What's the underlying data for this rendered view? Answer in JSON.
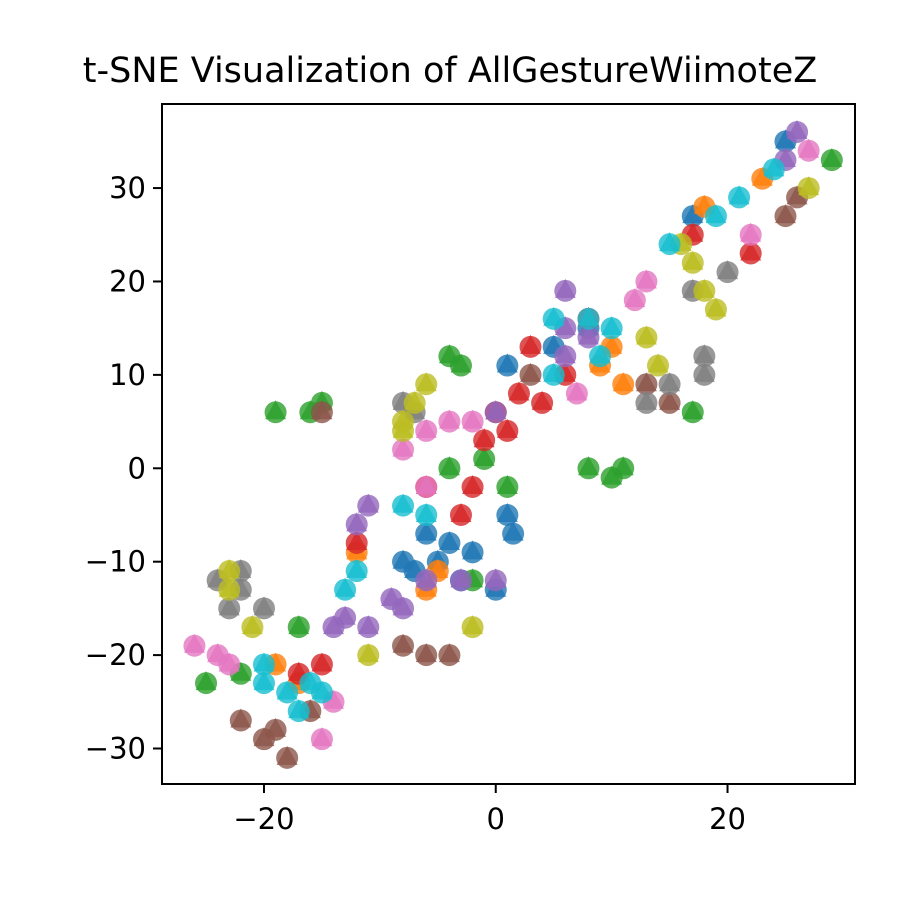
{
  "chart_data": {
    "type": "scatter",
    "title": "t-SNE Visualization of AllGestureWiimoteZ",
    "xlabel": "",
    "ylabel": "",
    "xlim": [
      -28.8,
      31.0
    ],
    "ylim": [
      -33.8,
      39.0
    ],
    "xticks": [
      -20,
      0,
      20
    ],
    "xtick_labels": [
      "−20",
      "0",
      "20"
    ],
    "yticks": [
      -30,
      -20,
      -10,
      0,
      10,
      20,
      30
    ],
    "ytick_labels": [
      "−30",
      "−20",
      "−10",
      "0",
      "10",
      "20",
      "30"
    ],
    "grid": false,
    "legend": false,
    "marker_styles": [
      "circle",
      "triangle"
    ],
    "series": [
      {
        "color": "#1f77b4",
        "points": [
          [
            1,
            -5
          ],
          [
            1.5,
            -7
          ],
          [
            -4,
            -8
          ],
          [
            -5,
            -10
          ],
          [
            -7,
            -11
          ],
          [
            0,
            -13
          ],
          [
            -8,
            -10
          ],
          [
            -3,
            -12
          ],
          [
            -6,
            -7
          ],
          [
            5,
            13
          ],
          [
            1,
            11
          ],
          [
            8,
            15
          ],
          [
            25,
            35
          ],
          [
            17,
            27
          ],
          [
            -2,
            -9
          ]
        ]
      },
      {
        "color": "#ff7f0e",
        "points": [
          [
            -5,
            -11
          ],
          [
            9,
            11
          ],
          [
            10,
            13
          ],
          [
            11,
            9
          ],
          [
            -12,
            -9
          ],
          [
            -19,
            -21
          ],
          [
            23,
            31
          ],
          [
            -17,
            -23
          ],
          [
            18,
            28
          ],
          [
            -6,
            -13
          ]
        ]
      },
      {
        "color": "#2ca02c",
        "points": [
          [
            -4,
            12
          ],
          [
            -3,
            11
          ],
          [
            8,
            0
          ],
          [
            10,
            -1
          ],
          [
            11,
            0
          ],
          [
            -4,
            0
          ],
          [
            -1,
            1
          ],
          [
            1,
            -2
          ],
          [
            -2,
            -12
          ],
          [
            17,
            6
          ],
          [
            29,
            33
          ],
          [
            -17,
            -17
          ],
          [
            -25,
            -23
          ],
          [
            -22,
            -22
          ],
          [
            -19,
            6
          ],
          [
            -15,
            7
          ],
          [
            -16,
            6
          ]
        ]
      },
      {
        "color": "#d62728",
        "points": [
          [
            1,
            4
          ],
          [
            -1,
            3
          ],
          [
            0,
            6
          ],
          [
            2,
            8
          ],
          [
            3,
            13
          ],
          [
            -2,
            -2
          ],
          [
            -3,
            -5
          ],
          [
            -6,
            -2
          ],
          [
            4,
            7
          ],
          [
            8,
            16
          ],
          [
            6,
            10
          ],
          [
            -12,
            -8
          ],
          [
            -15,
            -21
          ],
          [
            -17,
            -22
          ],
          [
            22,
            23
          ],
          [
            17,
            25
          ]
        ]
      },
      {
        "color": "#9467bd",
        "points": [
          [
            6,
            19
          ],
          [
            0,
            6
          ],
          [
            6,
            15
          ],
          [
            -11,
            -4
          ],
          [
            -12,
            -6
          ],
          [
            -13,
            -16
          ],
          [
            -11,
            -17
          ],
          [
            -9,
            -14
          ],
          [
            -6,
            -12
          ],
          [
            -3,
            -12
          ],
          [
            0,
            -12
          ],
          [
            -14,
            -17
          ],
          [
            -8,
            -15
          ],
          [
            26,
            36
          ],
          [
            25,
            33
          ],
          [
            6,
            12
          ],
          [
            8,
            14
          ]
        ]
      },
      {
        "color": "#8c564b",
        "points": [
          [
            -8,
            -19
          ],
          [
            -6,
            -20
          ],
          [
            -4,
            -20
          ],
          [
            -22,
            -27
          ],
          [
            -19,
            -28
          ],
          [
            -18,
            -31
          ],
          [
            -16,
            -26
          ],
          [
            -20,
            -29
          ],
          [
            3,
            10
          ],
          [
            15,
            7
          ],
          [
            25,
            27
          ],
          [
            26,
            29
          ],
          [
            13,
            9
          ],
          [
            -15,
            6
          ]
        ]
      },
      {
        "color": "#e377c2",
        "points": [
          [
            -26,
            -19
          ],
          [
            -24,
            -20
          ],
          [
            -23,
            -21
          ],
          [
            -14,
            -25
          ],
          [
            -15,
            -29
          ],
          [
            -8,
            2
          ],
          [
            -6,
            4
          ],
          [
            -4,
            5
          ],
          [
            -2,
            5
          ],
          [
            -6,
            -2
          ],
          [
            13,
            20
          ],
          [
            12,
            18
          ],
          [
            22,
            25
          ],
          [
            27,
            34
          ],
          [
            7,
            8
          ]
        ]
      },
      {
        "color": "#7f7f7f",
        "points": [
          [
            -24,
            -12
          ],
          [
            -22,
            -11
          ],
          [
            -22,
            -13
          ],
          [
            -20,
            -15
          ],
          [
            -23,
            -15
          ],
          [
            -8,
            7
          ],
          [
            18,
            12
          ],
          [
            18,
            10
          ],
          [
            13,
            7
          ],
          [
            15,
            9
          ],
          [
            20,
            21
          ],
          [
            17,
            19
          ],
          [
            -7,
            6
          ]
        ]
      },
      {
        "color": "#bcbd22",
        "points": [
          [
            -23,
            -11
          ],
          [
            -23,
            -13
          ],
          [
            -21,
            -17
          ],
          [
            -11,
            -20
          ],
          [
            -2,
            -17
          ],
          [
            -6,
            9
          ],
          [
            -7,
            7
          ],
          [
            -8,
            5
          ],
          [
            -8,
            4
          ],
          [
            13,
            14
          ],
          [
            14,
            11
          ],
          [
            16,
            24
          ],
          [
            18,
            19
          ],
          [
            19,
            17
          ],
          [
            27,
            30
          ],
          [
            17,
            22
          ]
        ]
      },
      {
        "color": "#17becf",
        "points": [
          [
            -20,
            -21
          ],
          [
            -18,
            -24
          ],
          [
            -17,
            -26
          ],
          [
            -16,
            -23
          ],
          [
            -13,
            -13
          ],
          [
            -12,
            -11
          ],
          [
            -8,
            -4
          ],
          [
            -6,
            -5
          ],
          [
            -20,
            -23
          ],
          [
            -15,
            -24
          ],
          [
            5,
            16
          ],
          [
            8,
            16
          ],
          [
            10,
            15
          ],
          [
            15,
            24
          ],
          [
            19,
            27
          ],
          [
            21,
            29
          ],
          [
            24,
            32
          ],
          [
            5,
            10
          ],
          [
            9,
            12
          ]
        ]
      }
    ]
  }
}
